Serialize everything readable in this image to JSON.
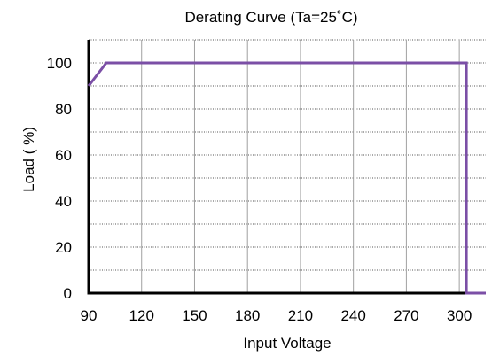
{
  "chart_data": {
    "type": "line",
    "title": "Derating Curve    (Ta=25˚C)",
    "xlabel": "Input  Voltage",
    "ylabel": "Load ( %)",
    "xlim": [
      90,
      315
    ],
    "ylim": [
      0,
      110
    ],
    "x_ticks": [
      90,
      120,
      150,
      180,
      210,
      240,
      270,
      300
    ],
    "y_ticks": [
      0,
      20,
      40,
      60,
      80,
      100
    ],
    "grid": true,
    "series": [
      {
        "color": "#7b4fa6",
        "points": [
          [
            90,
            90
          ],
          [
            100,
            100
          ],
          [
            304,
            100
          ],
          [
            304,
            0
          ],
          [
            315,
            0
          ]
        ]
      }
    ]
  }
}
